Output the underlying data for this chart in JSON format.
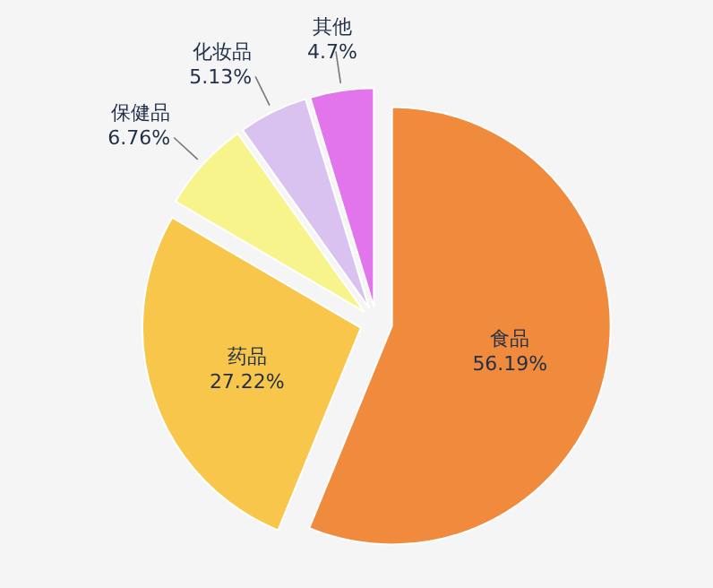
{
  "chart_data": {
    "type": "pie",
    "categories": [
      "食品",
      "药品",
      "保健品",
      "化妆品",
      "其他"
    ],
    "values": [
      56.19,
      27.22,
      6.76,
      5.13,
      4.7
    ],
    "value_labels": [
      "56.19%",
      "27.22%",
      "6.76%",
      "5.13%",
      "4.7%"
    ],
    "colors": [
      "#f08a3c",
      "#f7c64a",
      "#f8f48c",
      "#d9c2f0",
      "#e274ec"
    ],
    "legend": false
  }
}
